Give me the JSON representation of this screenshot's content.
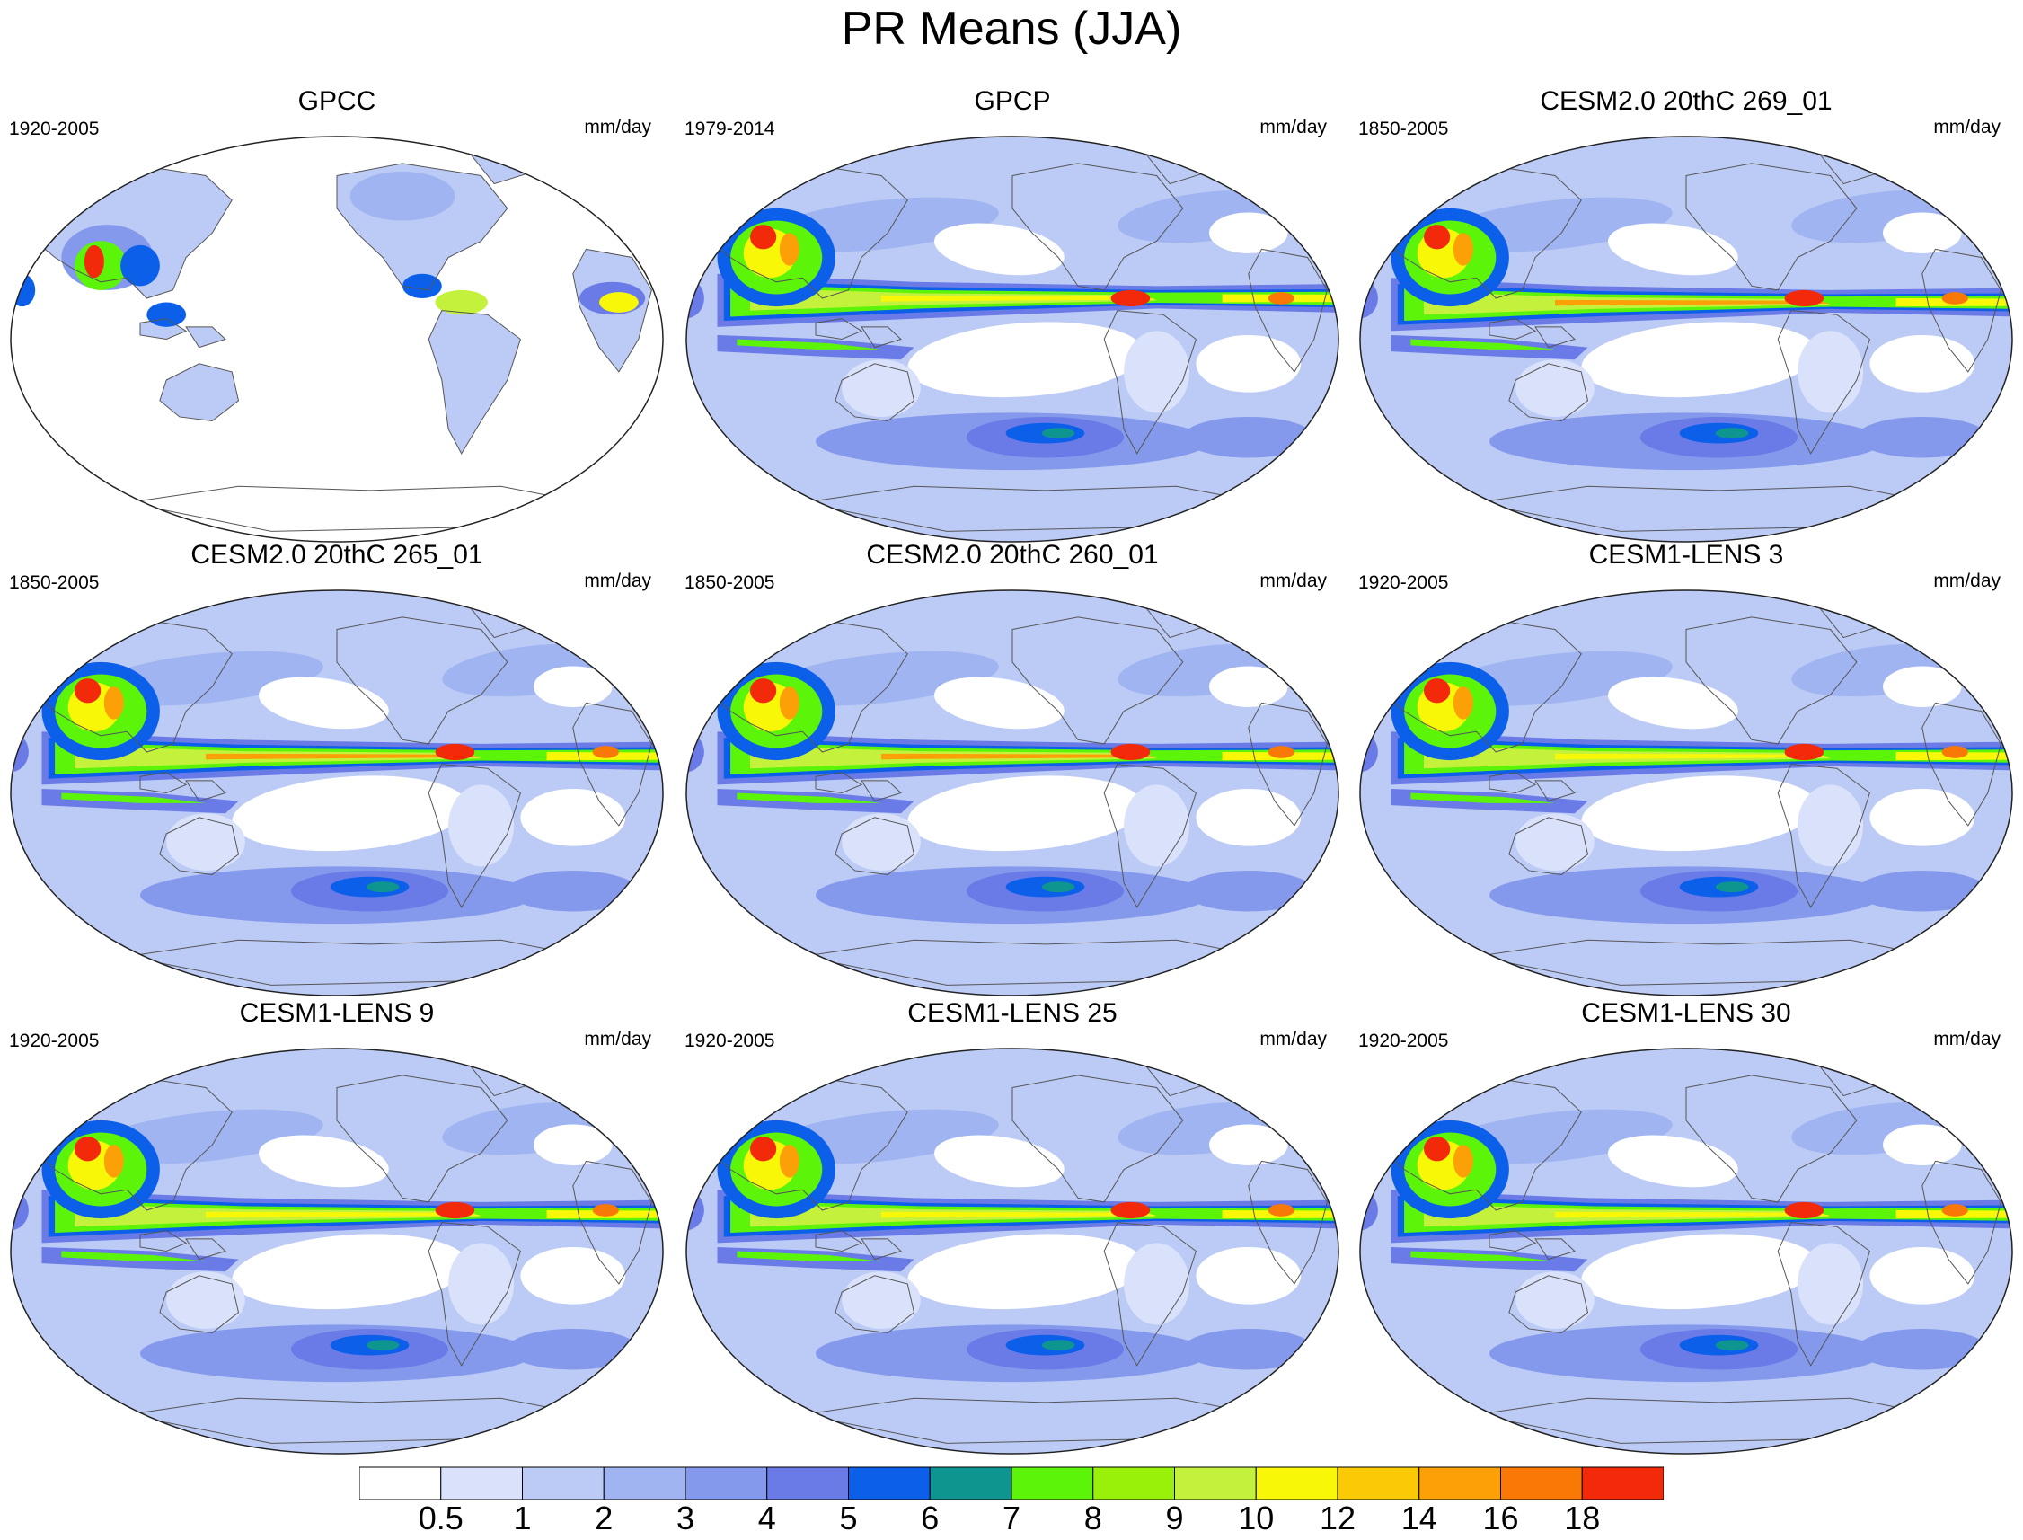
{
  "title": "PR Means (JJA)",
  "panels": [
    {
      "title": "GPCC",
      "period": "1920-2005",
      "units": "mm/day",
      "style": "obs-land"
    },
    {
      "title": "GPCP",
      "period": "1979-2014",
      "units": "mm/day",
      "style": "obs-global"
    },
    {
      "title": "CESM2.0 20thC 269_01",
      "period": "1850-2005",
      "units": "mm/day",
      "style": "model-strong"
    },
    {
      "title": "CESM2.0 20thC 265_01",
      "period": "1850-2005",
      "units": "mm/day",
      "style": "model-strong"
    },
    {
      "title": "CESM2.0 20thC 260_01",
      "period": "1850-2005",
      "units": "mm/day",
      "style": "model-strong"
    },
    {
      "title": "CESM1-LENS 3",
      "period": "1920-2005",
      "units": "mm/day",
      "style": "model"
    },
    {
      "title": "CESM1-LENS 9",
      "period": "1920-2005",
      "units": "mm/day",
      "style": "model"
    },
    {
      "title": "CESM1-LENS 25",
      "period": "1920-2005",
      "units": "mm/day",
      "style": "model"
    },
    {
      "title": "CESM1-LENS 30",
      "period": "1920-2005",
      "units": "mm/day",
      "style": "model"
    }
  ],
  "colorbar": {
    "colors": [
      "#ffffff",
      "#dae1fa",
      "#bccbf5",
      "#9fb4f0",
      "#8599ec",
      "#6a7ae6",
      "#0b5fe9",
      "#0f958f",
      "#5cf50a",
      "#99f10a",
      "#c4f23c",
      "#f9f708",
      "#fbca06",
      "#fba006",
      "#f97806",
      "#f22a0a"
    ],
    "labels": [
      "0.5",
      "1",
      "2",
      "3",
      "4",
      "5",
      "6",
      "7",
      "8",
      "9",
      "10",
      "12",
      "14",
      "16",
      "18"
    ]
  }
}
